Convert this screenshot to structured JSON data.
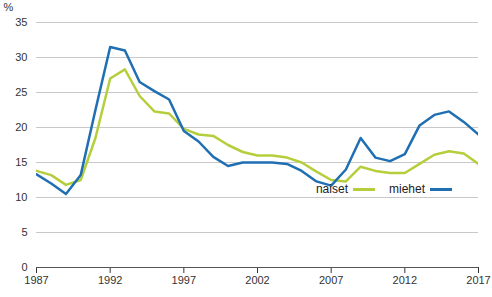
{
  "chart_data": {
    "type": "line",
    "y_label": "%",
    "x": [
      1987,
      1988,
      1989,
      1990,
      1991,
      1992,
      1993,
      1994,
      1995,
      1996,
      1997,
      1998,
      1999,
      2000,
      2001,
      2002,
      2003,
      2004,
      2005,
      2006,
      2007,
      2008,
      2009,
      2010,
      2011,
      2012,
      2013,
      2014,
      2015,
      2016,
      2017
    ],
    "series": [
      {
        "name": "naiset",
        "color": "#b5cf3c",
        "values": [
          13.8,
          13.2,
          11.8,
          12.5,
          18.5,
          27.0,
          28.3,
          24.5,
          22.3,
          22.0,
          19.8,
          19.0,
          18.8,
          17.5,
          16.5,
          16.0,
          16.0,
          15.7,
          15.0,
          13.7,
          12.5,
          12.3,
          14.4,
          13.8,
          13.5,
          13.5,
          14.8,
          16.1,
          16.6,
          16.3,
          14.8
        ]
      },
      {
        "name": "miehet",
        "color": "#1f6fb2",
        "values": [
          13.3,
          12.0,
          10.5,
          13.2,
          22.5,
          31.5,
          31.0,
          26.5,
          25.2,
          24.0,
          19.5,
          18.0,
          15.8,
          14.5,
          15.0,
          15.0,
          15.0,
          14.8,
          13.8,
          12.3,
          11.7,
          14.0,
          18.5,
          15.7,
          15.2,
          16.2,
          20.3,
          21.8,
          22.3,
          20.8,
          19.0
        ]
      }
    ],
    "xlim": [
      1987,
      2017
    ],
    "xticks": [
      1987,
      1992,
      1997,
      2002,
      2007,
      2012,
      2017
    ],
    "ylim": [
      0,
      35
    ],
    "yticks": [
      0,
      5,
      10,
      15,
      20,
      25,
      30,
      35
    ],
    "grid": true,
    "legend": "bottom-right"
  }
}
